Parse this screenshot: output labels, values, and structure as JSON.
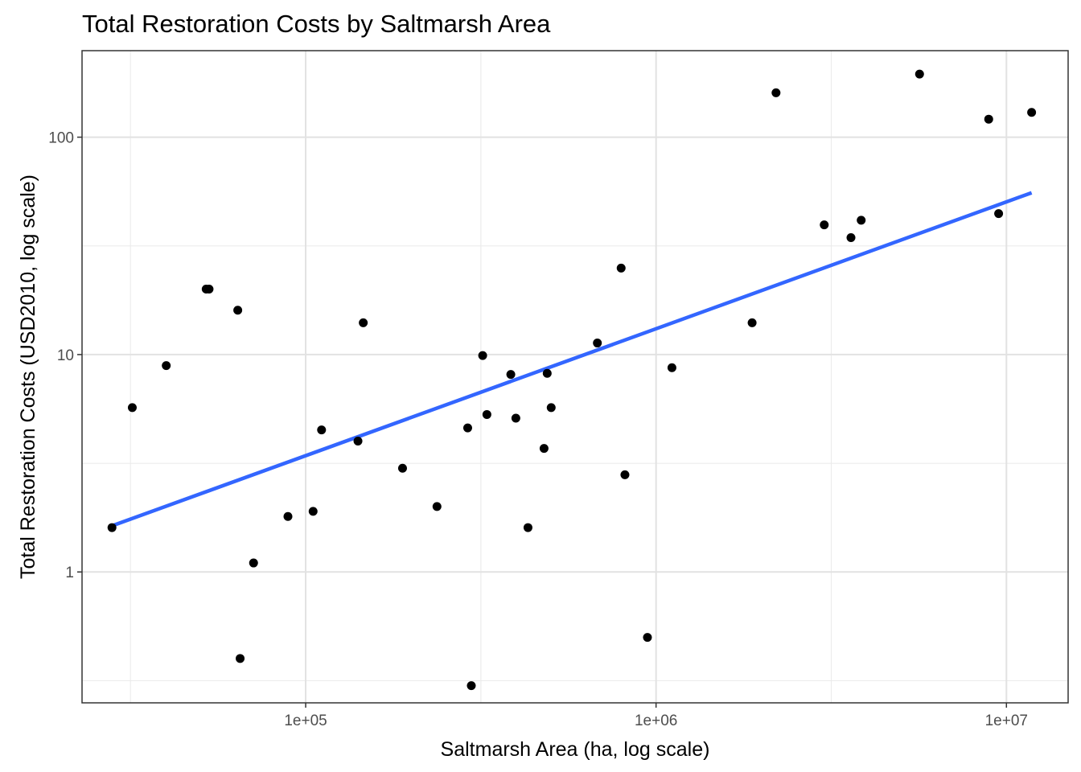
{
  "chart_data": {
    "type": "scatter",
    "title": "Total Restoration Costs by Saltmarsh Area",
    "xlabel": "Saltmarsh Area (ha, log scale)",
    "ylabel": "Total Restoration Costs (USD2010, log scale)",
    "x_scale": "log10",
    "y_scale": "log10",
    "xlim": [
      23000,
      15000000
    ],
    "ylim": [
      0.25,
      250
    ],
    "x_major_ticks": [
      100000,
      1000000,
      10000000
    ],
    "x_tick_labels": [
      "1e+05",
      "1e+06",
      "1e+07"
    ],
    "x_minor_ticks": [
      31623,
      316228,
      3162278
    ],
    "y_major_ticks": [
      1,
      10,
      100
    ],
    "y_tick_labels": [
      "1",
      "10",
      "100"
    ],
    "y_minor_ticks": [
      0.316,
      3.16,
      31.6
    ],
    "grid": true,
    "point_color": "#000000",
    "points": [
      {
        "x": 28000,
        "y": 1.6
      },
      {
        "x": 32000,
        "y": 5.7
      },
      {
        "x": 40000,
        "y": 8.9
      },
      {
        "x": 52000,
        "y": 20.0
      },
      {
        "x": 53000,
        "y": 20.0
      },
      {
        "x": 64000,
        "y": 16.0
      },
      {
        "x": 65000,
        "y": 0.4
      },
      {
        "x": 71000,
        "y": 1.1
      },
      {
        "x": 89000,
        "y": 1.8
      },
      {
        "x": 105000,
        "y": 1.9
      },
      {
        "x": 111000,
        "y": 4.5
      },
      {
        "x": 141000,
        "y": 4.0
      },
      {
        "x": 146000,
        "y": 14.0
      },
      {
        "x": 189000,
        "y": 3.0
      },
      {
        "x": 237000,
        "y": 2.0
      },
      {
        "x": 290000,
        "y": 4.6
      },
      {
        "x": 297000,
        "y": 0.3
      },
      {
        "x": 320000,
        "y": 9.9
      },
      {
        "x": 329000,
        "y": 5.3
      },
      {
        "x": 385000,
        "y": 8.1
      },
      {
        "x": 398000,
        "y": 5.1
      },
      {
        "x": 431000,
        "y": 1.6
      },
      {
        "x": 479000,
        "y": 3.7
      },
      {
        "x": 489000,
        "y": 8.2
      },
      {
        "x": 502000,
        "y": 5.7
      },
      {
        "x": 680000,
        "y": 11.3
      },
      {
        "x": 795000,
        "y": 25.0
      },
      {
        "x": 815000,
        "y": 2.8
      },
      {
        "x": 945000,
        "y": 0.5
      },
      {
        "x": 1110000,
        "y": 8.7
      },
      {
        "x": 1880000,
        "y": 14.0
      },
      {
        "x": 2200000,
        "y": 160.0
      },
      {
        "x": 3020000,
        "y": 39.5
      },
      {
        "x": 3600000,
        "y": 34.5
      },
      {
        "x": 3850000,
        "y": 41.5
      },
      {
        "x": 5650000,
        "y": 195.0
      },
      {
        "x": 8900000,
        "y": 121.0
      },
      {
        "x": 9500000,
        "y": 44.5
      },
      {
        "x": 11800000,
        "y": 130.0
      }
    ],
    "trend_line": {
      "color": "#3366ff",
      "method": "linear fit on log scales",
      "start": {
        "x": 28000,
        "y": 1.63
      },
      "end": {
        "x": 11800000,
        "y": 55.5
      }
    }
  }
}
